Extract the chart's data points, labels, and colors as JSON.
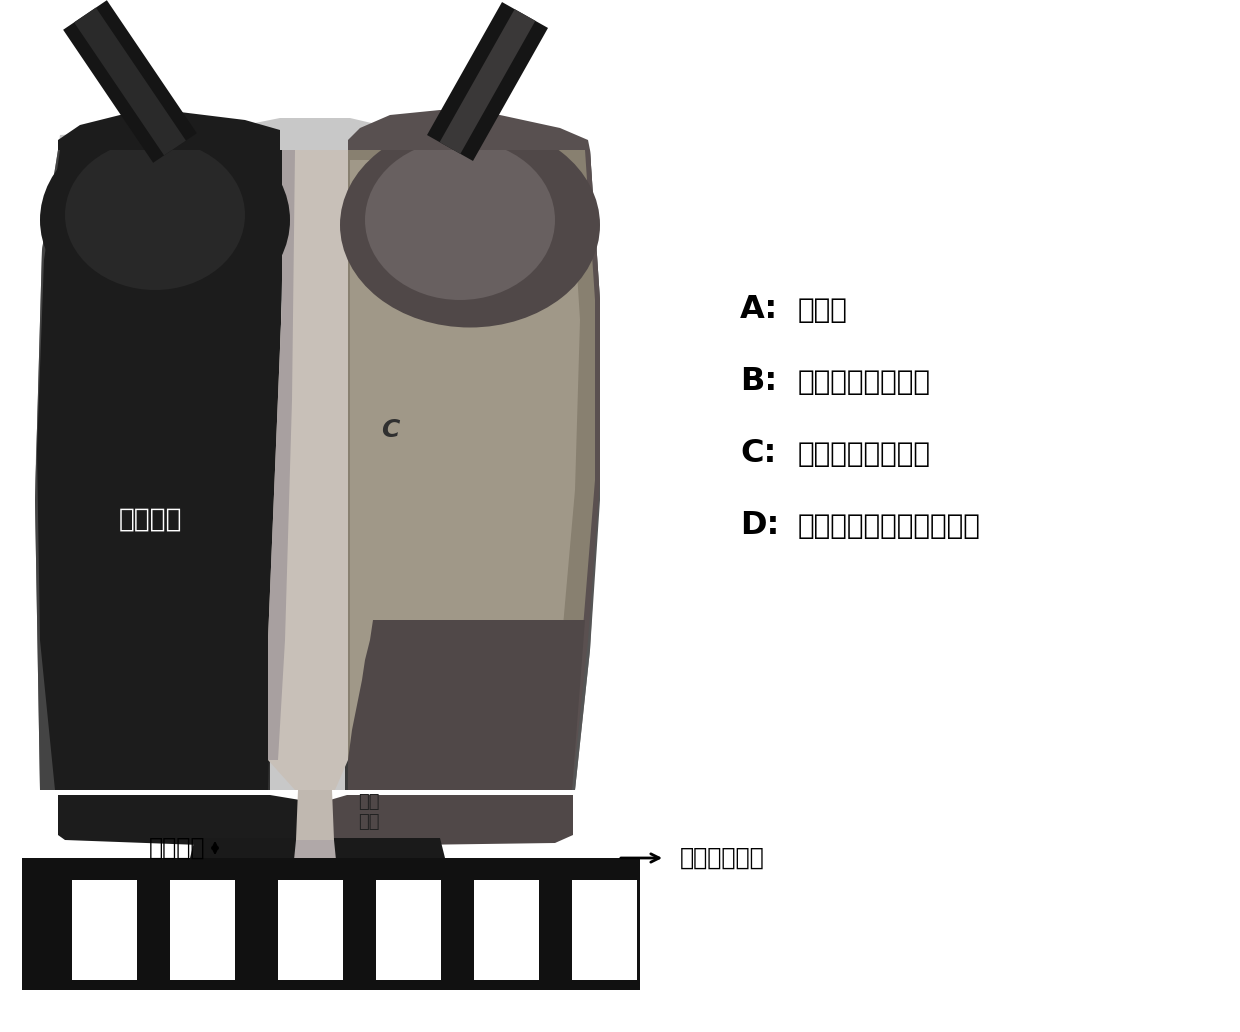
{
  "bg_color": "#ffffff",
  "legend_items": [
    {
      "label": "A:",
      "desc": "支撑体"
    },
    {
      "label": "B:",
      "desc": "有机单体第一溶液"
    },
    {
      "label": "C:",
      "desc": "有机单体第二溶液"
    },
    {
      "label": "D:",
      "desc": "由界面聚合形成的选择层"
    }
  ],
  "label_slot_thickness": "狭缝厚度",
  "label_die_lip": "模唇\n长度",
  "label_coating_gap": "涂布间隙",
  "label_track_dir": "轨道移动方向",
  "label_C": "C"
}
